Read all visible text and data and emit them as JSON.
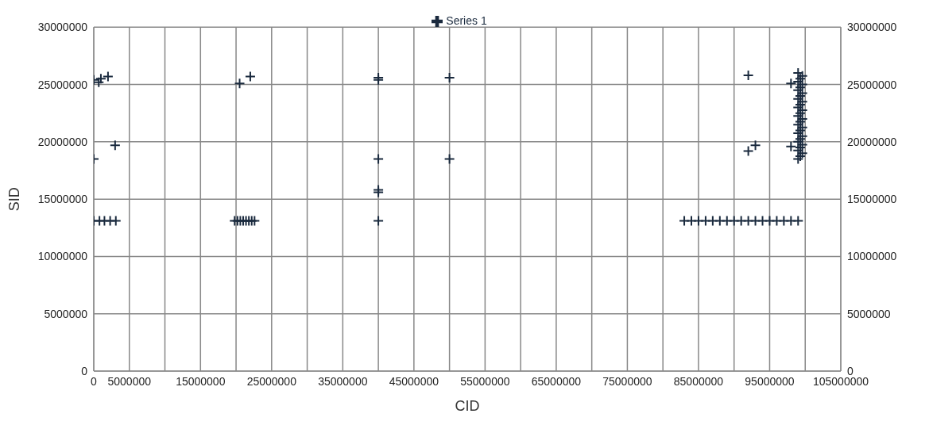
{
  "chart_data": {
    "type": "scatter",
    "xlabel": "CID",
    "ylabel": "SID",
    "legend": "top",
    "grid": true,
    "marker": "cross",
    "xlim": [
      0,
      105000000
    ],
    "xticks": [
      0,
      5000000,
      {
        "value": 10000000,
        "label": null
      },
      15000000,
      {
        "value": 20000000,
        "label": null
      },
      25000000,
      {
        "value": 30000000,
        "label": null
      },
      35000000,
      {
        "value": 40000000,
        "label": null
      },
      45000000,
      {
        "value": 50000000,
        "label": null
      },
      55000000,
      {
        "value": 60000000,
        "label": null
      },
      65000000,
      {
        "value": 70000000,
        "label": null
      },
      75000000,
      {
        "value": 80000000,
        "label": null
      },
      85000000,
      {
        "value": 90000000,
        "label": null
      },
      95000000,
      {
        "value": 100000000,
        "label": null
      },
      105000000
    ],
    "ylim": [
      0,
      30000000
    ],
    "yticks": [
      0,
      5000000,
      10000000,
      15000000,
      20000000,
      25000000,
      30000000
    ],
    "y2lim": [
      0,
      30000000
    ],
    "y2ticks": [
      0,
      5000000,
      10000000,
      15000000,
      20000000,
      25000000,
      30000000
    ],
    "series": [
      {
        "name": "Series 1",
        "color": "#1a2a3e",
        "x": [
          0,
          800000,
          1500000,
          2300000,
          3100000,
          0,
          700000,
          1000000,
          2000000,
          0,
          3000000,
          19800000,
          20200000,
          20600000,
          21000000,
          21400000,
          21800000,
          22200000,
          22600000,
          20500000,
          22000000,
          40000000,
          40000000,
          40000000,
          40000000,
          40000000,
          40000000,
          50000000,
          50000000,
          83000000,
          84000000,
          85000000,
          86000000,
          87000000,
          88000000,
          89000000,
          90000000,
          91000000,
          92000000,
          93000000,
          94000000,
          95000000,
          96000000,
          97000000,
          98000000,
          99000000,
          92000000,
          92000000,
          93000000,
          98000000,
          98000000,
          99000000,
          99300000,
          99600000,
          99000000,
          99300000,
          99600000,
          99000000,
          99300000,
          99600000,
          99000000,
          99300000,
          99600000,
          99000000,
          99300000,
          99600000,
          99000000,
          99300000,
          99600000,
          99000000,
          99300000,
          99600000,
          99000000,
          99300000,
          99600000,
          99000000,
          99300000,
          99600000,
          99000000,
          99300000,
          99600000,
          99000000
        ],
        "values": [
          13100000,
          13100000,
          13100000,
          13100000,
          13100000,
          25400000,
          25200000,
          25500000,
          25700000,
          18500000,
          19700000,
          13100000,
          13100000,
          13100000,
          13100000,
          13100000,
          13100000,
          13100000,
          13100000,
          25100000,
          25700000,
          25400000,
          25600000,
          18500000,
          15600000,
          15800000,
          13100000,
          25600000,
          18500000,
          13100000,
          13100000,
          13100000,
          13100000,
          13100000,
          13100000,
          13100000,
          13100000,
          13100000,
          13100000,
          13100000,
          13100000,
          13100000,
          13100000,
          13100000,
          13100000,
          13100000,
          25800000,
          19200000,
          19700000,
          25100000,
          19600000,
          18500000,
          18750000,
          19000000,
          19250000,
          19500000,
          19750000,
          20000000,
          20250000,
          20500000,
          20750000,
          21000000,
          21250000,
          21500000,
          21750000,
          22000000,
          22250000,
          22500000,
          22750000,
          23000000,
          23250000,
          23500000,
          23750000,
          24000000,
          24250000,
          24500000,
          24750000,
          25000000,
          25250000,
          25500000,
          25750000,
          26000000
        ]
      }
    ]
  }
}
